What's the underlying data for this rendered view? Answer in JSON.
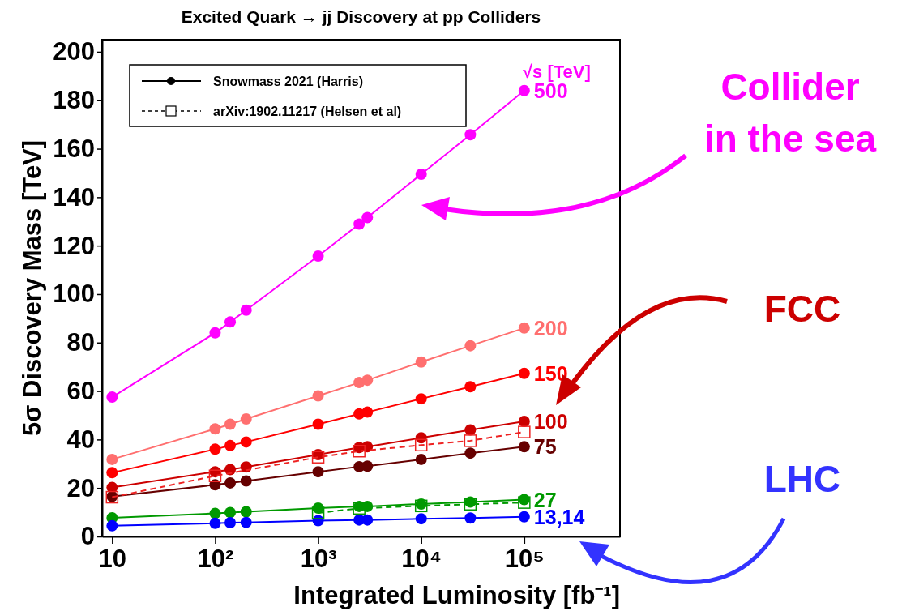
{
  "chart_data": {
    "type": "line",
    "title": "Excited Quark → jj Discovery at pp Colliders",
    "xlabel": "Integrated Luminosity [fb⁻¹]",
    "ylabel": "5σ Discovery Mass [TeV]",
    "log": "x",
    "xlim": [
      8,
      850000
    ],
    "ylim": [
      0,
      205
    ],
    "xticks": [
      {
        "value": 10,
        "label": "10"
      },
      {
        "value": 100,
        "label": "10²"
      },
      {
        "value": 1000,
        "label": "10³"
      },
      {
        "value": 10000,
        "label": "10⁴"
      },
      {
        "value": 100000,
        "label": "10⁵"
      }
    ],
    "yticks": [
      0,
      20,
      40,
      60,
      80,
      100,
      120,
      140,
      160,
      180,
      200
    ],
    "legend": "right",
    "grid": false,
    "x": [
      10,
      100,
      140,
      200,
      1000,
      2500,
      3000,
      10000,
      30000,
      100000
    ],
    "series": [
      {
        "name": "500",
        "color": "#ff00ff",
        "marker": "circle",
        "line_style": "solid",
        "values": [
          57.5,
          84,
          88.5,
          93.4,
          115.7,
          128.9,
          131.6,
          149.5,
          165.8,
          184
        ]
      },
      {
        "name": "200",
        "color": "#ff6f6f",
        "marker": "circle",
        "line_style": "solid",
        "values": [
          31.8,
          44.4,
          46.3,
          48.5,
          58,
          63.5,
          64.5,
          72,
          78.7,
          86
        ]
      },
      {
        "name": "150",
        "color": "#ff0000",
        "marker": "circle",
        "line_style": "solid",
        "values": [
          26.3,
          36,
          37.5,
          39,
          46.3,
          50.6,
          51.3,
          56.8,
          61.8,
          67.3
        ]
      },
      {
        "name": "100",
        "color": "#cc0000",
        "marker": "circle",
        "line_style": "solid",
        "values": [
          20.2,
          26.7,
          27.6,
          28.7,
          33.8,
          36.7,
          37,
          40.7,
          44,
          47.5
        ]
      },
      {
        "color": "#ee2222",
        "marker": "square",
        "line_style": "dashed",
        "x": [
          10,
          100,
          1000,
          2500,
          10000,
          30000,
          100000
        ],
        "values": [
          16.2,
          25,
          32.7,
          35.2,
          37.7,
          39.5,
          43.1
        ]
      },
      {
        "name": "75",
        "color": "#660000",
        "marker": "circle",
        "line_style": "solid",
        "values": [
          16.5,
          21.3,
          22.1,
          22.9,
          26.7,
          28.8,
          29,
          31.8,
          34.4,
          37
        ]
      },
      {
        "name": "27",
        "color": "#009900",
        "marker": "circle",
        "line_style": "solid",
        "values": [
          7.7,
          9.5,
          9.9,
          10.2,
          11.7,
          12.4,
          12.4,
          13.4,
          14.2,
          15.2
        ]
      },
      {
        "color": "#009900",
        "marker": "square",
        "line_style": "dashed",
        "x": [
          1000,
          2500,
          10000,
          30000,
          100000
        ],
        "values": [
          9.7,
          11.6,
          12.6,
          13.3,
          14
        ]
      },
      {
        "name": "13,14",
        "color": "#0000ff",
        "marker": "circle",
        "line_style": "solid",
        "values": [
          4.4,
          5.4,
          5.7,
          5.8,
          6.5,
          6.8,
          6.8,
          7.3,
          7.6,
          8.1
        ]
      }
    ],
    "annotations": [
      "√s  [TeV]",
      "Snowmass 2021 (Harris)",
      "arXiv:1902.11217 (Helsen et al)",
      "Collider\nin the sea",
      "FCC",
      "LHC"
    ]
  }
}
